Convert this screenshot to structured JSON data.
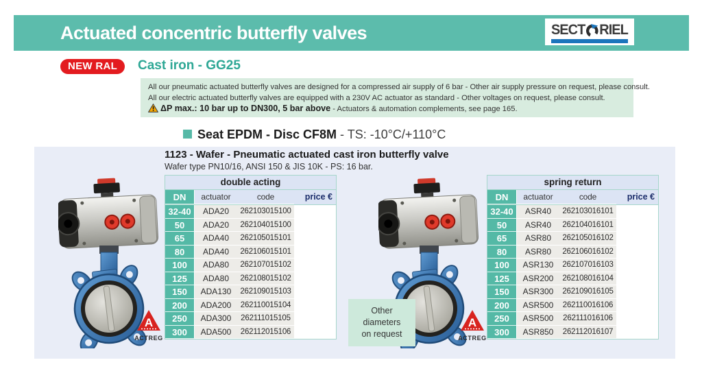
{
  "header": {
    "title": "Actuated concentric butterfly valves"
  },
  "logo": {
    "left": "SECT",
    "right": "RIEL"
  },
  "new_badge": "NEW RAL",
  "material_heading": "Cast iron - GG25",
  "info_box": {
    "line1": "All our pneumatic actuated butterfly valves are designed for a compressed air supply of 6 bar - Other air supply pressure on request, please consult.",
    "line2": "All our electric actuated butterfly valves are equipped with a 230V AC actuator as standard - Other voltages on request, please consult.",
    "dp_bold": "ΔP max.: 10 bar up to DN300, 5 bar above",
    "dp_rest": " - Actuators & automation complements, see page 165."
  },
  "seat_heading": {
    "bold": "Seat EPDM - Disc CF8M",
    "rest": " - TS: -10°C/+110°C"
  },
  "product": {
    "title": "1123 - Wafer - Pneumatic actuated cast iron butterfly valve",
    "subtitle": "Wafer type PN10/16, ANSI 150 & JIS 10K - PS: 16 bar."
  },
  "other_diameters": [
    "Other",
    "diameters",
    "on request"
  ],
  "valve_brand": "ACTREG",
  "colors": {
    "header_teal": "#5cbcac",
    "badge_red": "#e31b1f",
    "material_teal": "#2ea795",
    "info_bg": "#d8ecdf",
    "panel_bg": "#e9edf7",
    "table_dn_teal": "#54b9a6",
    "table_head_bg": "#dce4f4",
    "price_navy": "#1c2e6b",
    "logo_blue": "#1b75bc",
    "actreg_red": "#d8231f",
    "other_box_bg": "#cde9db"
  },
  "tables": [
    {
      "title": "double acting",
      "columns": [
        "DN",
        "actuator",
        "code",
        "price €"
      ],
      "rows": [
        [
          "32-40",
          "ADA20",
          "262103015100",
          ""
        ],
        [
          "50",
          "ADA20",
          "262104015100",
          ""
        ],
        [
          "65",
          "ADA40",
          "262105015101",
          ""
        ],
        [
          "80",
          "ADA40",
          "262106015101",
          ""
        ],
        [
          "100",
          "ADA80",
          "262107015102",
          ""
        ],
        [
          "125",
          "ADA80",
          "262108015102",
          ""
        ],
        [
          "150",
          "ADA130",
          "262109015103",
          ""
        ],
        [
          "200",
          "ADA200",
          "262110015104",
          ""
        ],
        [
          "250",
          "ADA300",
          "262111015105",
          ""
        ],
        [
          "300",
          "ADA500",
          "262112015106",
          ""
        ]
      ]
    },
    {
      "title": "spring return",
      "columns": [
        "DN",
        "actuator",
        "code",
        "price €"
      ],
      "rows": [
        [
          "32-40",
          "ASR40",
          "262103016101",
          ""
        ],
        [
          "50",
          "ASR40",
          "262104016101",
          ""
        ],
        [
          "65",
          "ASR80",
          "262105016102",
          ""
        ],
        [
          "80",
          "ASR80",
          "262106016102",
          ""
        ],
        [
          "100",
          "ASR130",
          "262107016103",
          ""
        ],
        [
          "125",
          "ASR200",
          "262108016104",
          ""
        ],
        [
          "150",
          "ASR300",
          "262109016105",
          ""
        ],
        [
          "200",
          "ASR500",
          "262110016106",
          ""
        ],
        [
          "250",
          "ASR500",
          "262111016106",
          ""
        ],
        [
          "300",
          "ASR850",
          "262112016107",
          ""
        ]
      ]
    }
  ]
}
